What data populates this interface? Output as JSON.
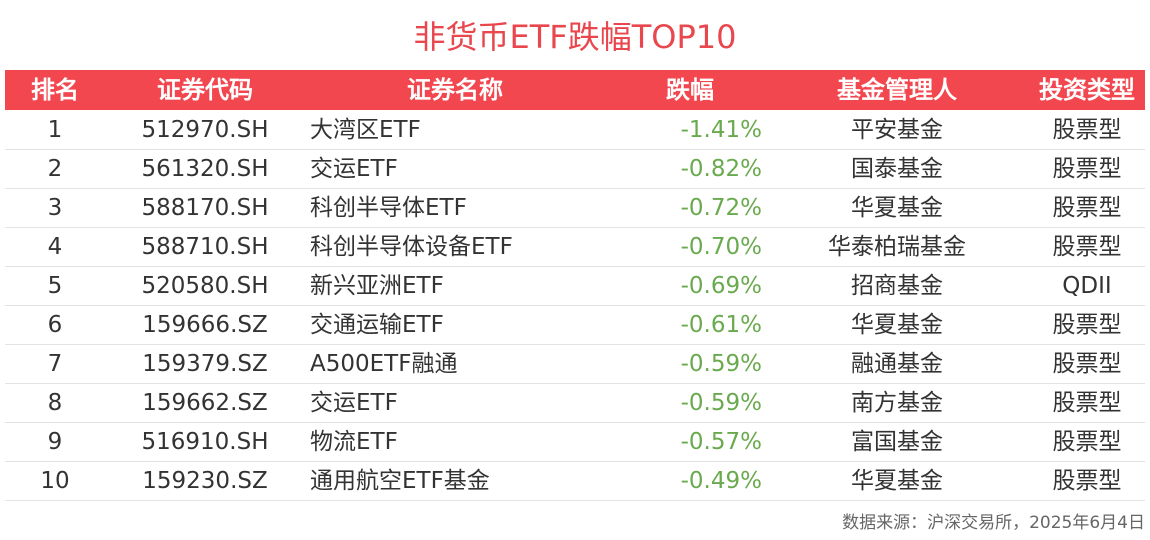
{
  "header": {
    "title": "非货币ETF跌幅TOP10"
  },
  "table": {
    "columns": [
      "排名",
      "证券代码",
      "证券名称",
      "跌幅",
      "基金管理人",
      "投资类型"
    ],
    "rows": [
      [
        "1",
        "512970.SH",
        "大湾区ETF",
        "-1.41%",
        "平安基金",
        "股票型"
      ],
      [
        "2",
        "561320.SH",
        "交运ETF",
        "-0.82%",
        "国泰基金",
        "股票型"
      ],
      [
        "3",
        "588170.SH",
        "科创半导体ETF",
        "-0.72%",
        "华夏基金",
        "股票型"
      ],
      [
        "4",
        "588710.SH",
        "科创半导体设备ETF",
        "-0.70%",
        "华泰柏瑞基金",
        "股票型"
      ],
      [
        "5",
        "520580.SH",
        "新兴亚洲ETF",
        "-0.69%",
        "招商基金",
        "QDII"
      ],
      [
        "6",
        "159666.SZ",
        "交通运输ETF",
        "-0.61%",
        "华夏基金",
        "股票型"
      ],
      [
        "7",
        "159379.SZ",
        "A500ETF融通",
        "-0.59%",
        "融通基金",
        "股票型"
      ],
      [
        "8",
        "159662.SZ",
        "交运ETF",
        "-0.59%",
        "南方基金",
        "股票型"
      ],
      [
        "9",
        "516910.SH",
        "物流ETF",
        "-0.57%",
        "富国基金",
        "股票型"
      ],
      [
        "10",
        "159230.SZ",
        "通用航空ETF基金",
        "-0.49%",
        "华夏基金",
        "股票型"
      ]
    ]
  },
  "footer": {
    "source": "数据来源：沪深交易所，2025年6月4日"
  }
}
